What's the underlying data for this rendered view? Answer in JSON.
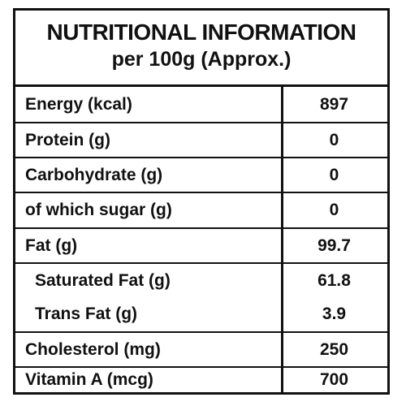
{
  "header": {
    "title": "NUTRITIONAL INFORMATION",
    "subtitle": "per 100g (Approx.)"
  },
  "rows": [
    {
      "label": "Energy (kcal)",
      "value": "897"
    },
    {
      "label": "Protein (g)",
      "value": "0"
    },
    {
      "label": "Carbohydrate (g)",
      "value": "0"
    },
    {
      "label": "of which sugar (g)",
      "value": "0"
    },
    {
      "label": "Fat (g)",
      "value": "99.7"
    },
    {
      "label": "Saturated Fat (g)",
      "value": "61.8"
    },
    {
      "label": "Trans Fat (g)",
      "value": "3.9"
    },
    {
      "label": "Cholesterol (mg)",
      "value": "250"
    },
    {
      "label": "Vitamin A (mcg)",
      "value": "700"
    }
  ]
}
